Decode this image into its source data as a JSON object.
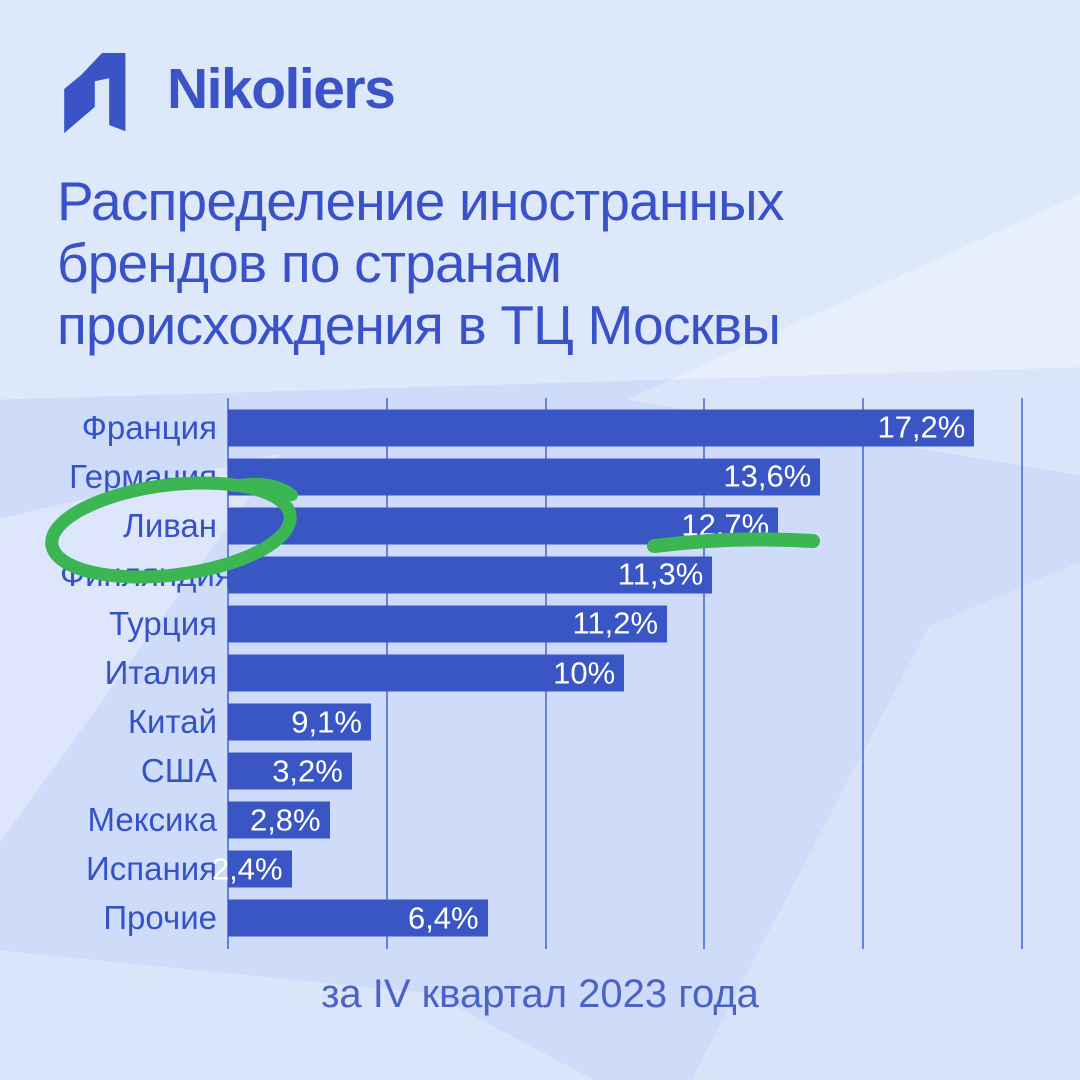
{
  "brand": {
    "name": "Nikoliers"
  },
  "title": {
    "line1": "Распределение иностранных",
    "line2": "брендов по странам",
    "line3": "происхождения в ТЦ Москвы"
  },
  "caption": "за IV квартал 2023 года",
  "chart_data": {
    "type": "bar",
    "orientation": "horizontal",
    "title": "Распределение иностранных брендов по странам происхождения в ТЦ Москвы",
    "caption": "за IV квартал 2023 года",
    "unit": "%",
    "categories": [
      "Франция",
      "Германия",
      "Ливан",
      "Финляндия",
      "Турция",
      "Италия",
      "Китай",
      "США",
      "Мексика",
      "Испания",
      "Прочие"
    ],
    "values": [
      17.2,
      13.6,
      12.7,
      11.3,
      11.2,
      10,
      9.1,
      3.2,
      2.8,
      2.4,
      6.4
    ],
    "value_labels": [
      "17,2%",
      "13,6%",
      "12,7%",
      "11,3%",
      "11,2%",
      "10%",
      "9,1%",
      "3,2%",
      "2,8%",
      "2,4%",
      "6,4%"
    ],
    "bar_width_pct": [
      94,
      74.6,
      69.3,
      61,
      55.3,
      49.9,
      18,
      15.6,
      12.8,
      8,
      32.7
    ],
    "gridline_count": 6,
    "legend": false,
    "value_label_position": "inside-right",
    "highlighted_category": "Ливан",
    "highlighted_value": "12,7%"
  },
  "annotations": {
    "circle_target": "Ливан",
    "underline_target": "12,7%",
    "color": "#3CB553",
    "style": "hand-drawn marker"
  },
  "colors": {
    "background": "#CEDCF9",
    "bar": "#3A56C5",
    "title_text": "#3951C9",
    "category_text": "#3453C7",
    "caption_text": "#4A63C4",
    "value_text": "#FFFFFF",
    "gridline": "#4C6CD0",
    "logo_blue": "#3A53C6",
    "annotation_green": "#3CB553"
  }
}
